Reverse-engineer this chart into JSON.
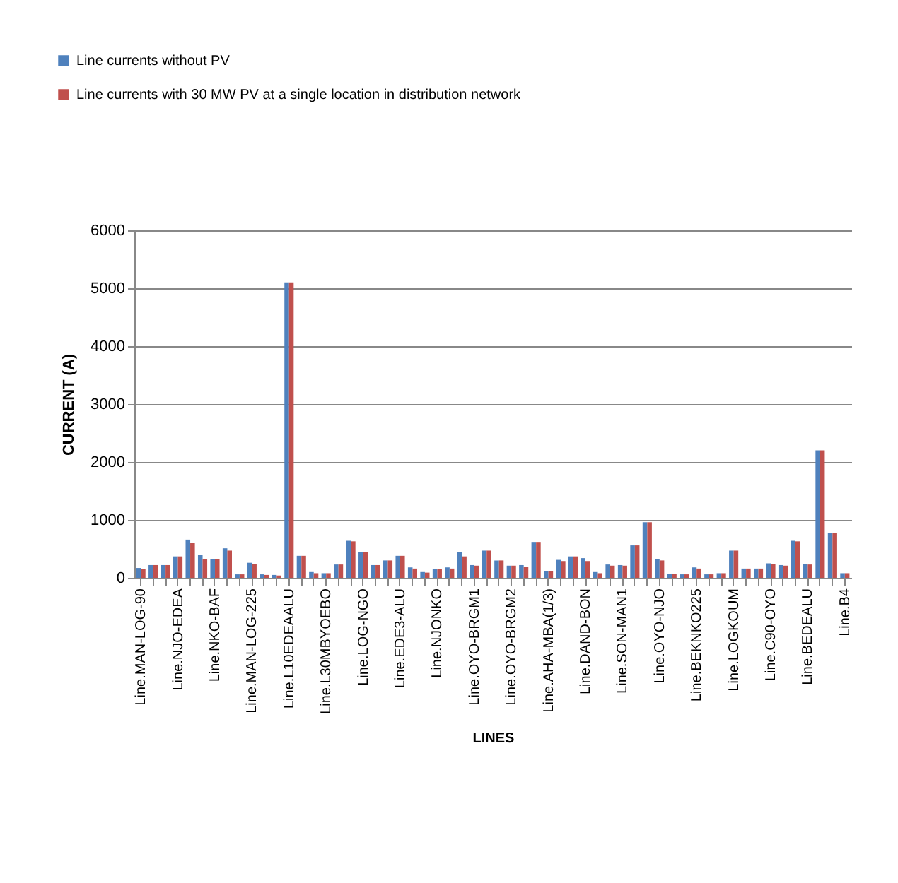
{
  "chart_data": {
    "type": "bar",
    "xlabel": "LINES",
    "ylabel": "CURRENT (A)",
    "categories": [
      "Line.MAN-LOG-90",
      null,
      null,
      "Line.NJO-EDEA",
      null,
      null,
      "Line.NKO-BAF",
      null,
      null,
      "Line.MAN-LOG-225",
      null,
      null,
      "Line.L10EDEAALU",
      null,
      null,
      "Line.L30MBYOEBO",
      null,
      null,
      "Line.LOG-NGO",
      null,
      null,
      "Line.EDE3-ALU",
      null,
      null,
      "Line.NJONKO",
      null,
      null,
      "Line.OYO-BRGM1",
      null,
      null,
      "Line.OYO-BRGM2",
      null,
      null,
      "Line.AHA-MBA(1/3)",
      null,
      null,
      "Line.DAND-BON",
      null,
      null,
      "Line.SON-MAN1",
      null,
      null,
      "Line.OYO-NJO",
      null,
      null,
      "Line.BEKNKO225",
      null,
      null,
      "Line.LOGKOUM",
      null,
      null,
      "Line.C90-OYO",
      null,
      null,
      "Line.BEDEALU",
      null,
      null,
      "Line.B4"
    ],
    "series": [
      {
        "name": "Line currents without PV",
        "color": "#4f81bd",
        "values": [
          170,
          220,
          220,
          370,
          660,
          400,
          320,
          510,
          60,
          260,
          60,
          50,
          5100,
          380,
          100,
          80,
          230,
          640,
          450,
          220,
          300,
          380,
          180,
          100,
          150,
          180,
          440,
          220,
          470,
          300,
          210,
          220,
          620,
          120,
          310,
          370,
          340,
          100,
          230,
          220,
          560,
          960,
          320,
          70,
          60,
          180,
          60,
          80,
          470,
          160,
          160,
          250,
          220,
          640,
          240,
          2200,
          770,
          80
        ]
      },
      {
        "name": "Line currents with 30 MW PV at a single location in distribution network",
        "color": "#c0504d",
        "values": [
          150,
          220,
          220,
          370,
          610,
          320,
          320,
          470,
          60,
          240,
          50,
          40,
          5100,
          380,
          80,
          80,
          230,
          630,
          440,
          220,
          300,
          380,
          160,
          90,
          150,
          160,
          370,
          210,
          470,
          300,
          210,
          190,
          620,
          120,
          290,
          370,
          290,
          80,
          210,
          210,
          560,
          960,
          300,
          70,
          60,
          160,
          60,
          80,
          470,
          160,
          160,
          240,
          210,
          630,
          230,
          2200,
          770,
          80
        ]
      }
    ],
    "ylim": [
      0,
      6000
    ],
    "yticks": [
      0,
      1000,
      2000,
      3000,
      4000,
      5000,
      6000
    ],
    "grid": "y",
    "legend": "top left"
  }
}
